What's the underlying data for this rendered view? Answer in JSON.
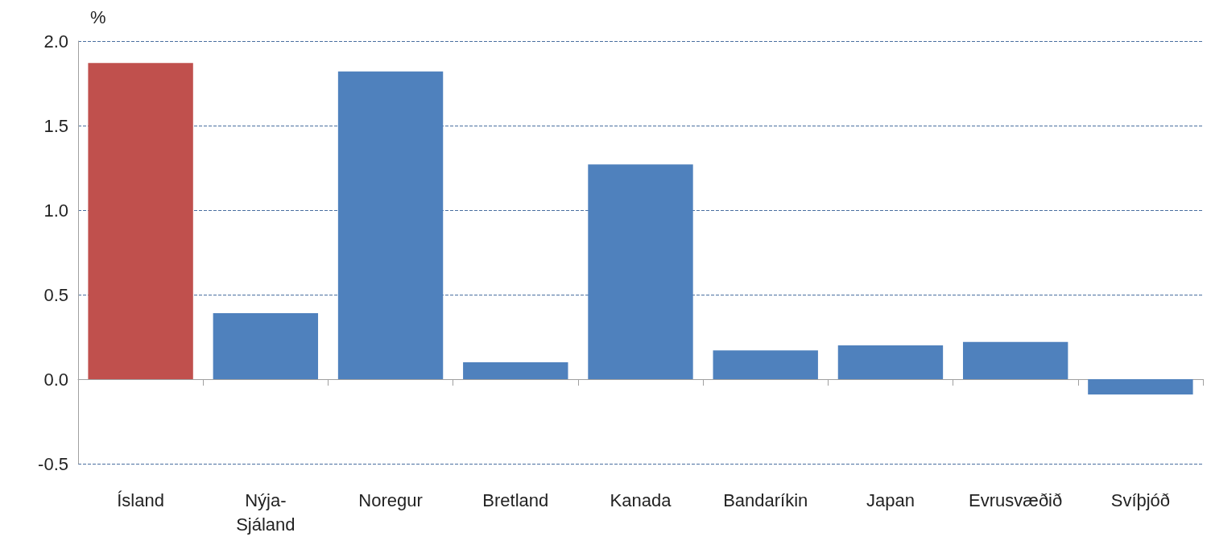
{
  "chart_data": {
    "type": "bar",
    "ylabel": "%",
    "categories": [
      "Ísland",
      "Nýja-Sjáland",
      "Noregur",
      "Bretland",
      "Kanada",
      "Bandaríkin",
      "Japan",
      "Evrusvæðið",
      "Svíþjóð"
    ],
    "values": [
      1.87,
      0.39,
      1.82,
      0.1,
      1.27,
      0.17,
      0.2,
      0.22,
      -0.09
    ],
    "colors": [
      "#c0504d",
      "#4f81bd",
      "#4f81bd",
      "#4f81bd",
      "#4f81bd",
      "#4f81bd",
      "#4f81bd",
      "#4f81bd",
      "#4f81bd"
    ],
    "ylim": [
      -0.5,
      2.0
    ],
    "yticks": [
      -0.5,
      {
        "value": 0,
        "label": "0.0"
      },
      0.5,
      {
        "value": 1,
        "label": "1.0"
      },
      1.5,
      {
        "value": 2,
        "label": "2.0"
      }
    ],
    "grid": "y"
  }
}
